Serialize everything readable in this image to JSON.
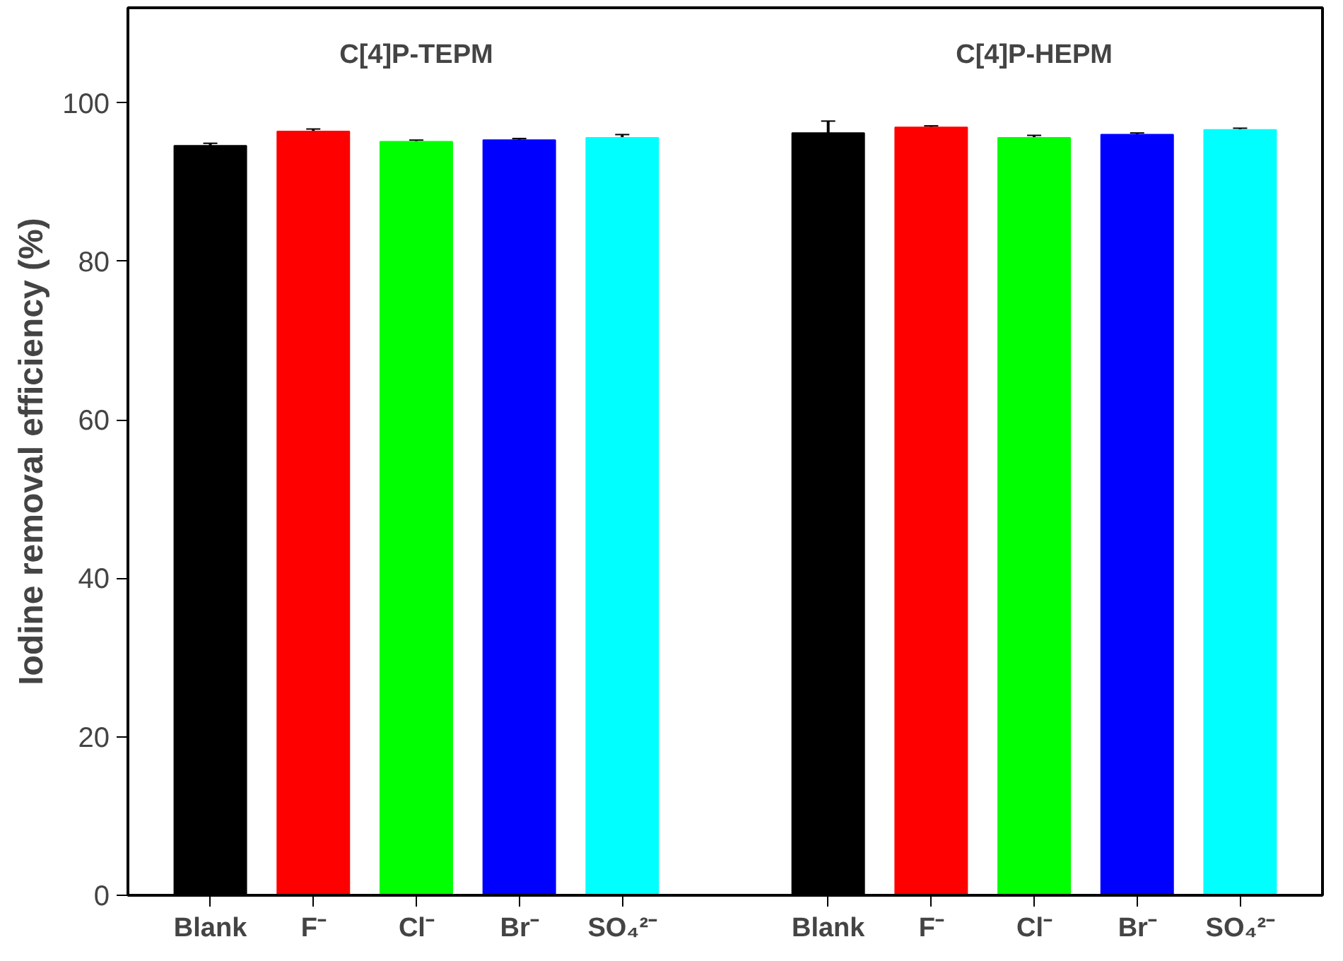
{
  "chart_data": {
    "type": "bar",
    "ylabel": "Iodine removal efficiency (%)",
    "categories": [
      "Blank",
      "F⁻",
      "Cl⁻",
      "Br⁻",
      "SO₄²⁻",
      null,
      "Blank",
      "F⁻",
      "Cl⁻",
      "Br⁻",
      "SO₄²⁻"
    ],
    "values": [
      94.6,
      96.4,
      95.1,
      95.3,
      95.6,
      null,
      96.2,
      96.9,
      95.6,
      96.0,
      96.6
    ],
    "errors": [
      0.3,
      0.3,
      0.2,
      0.2,
      0.4,
      null,
      1.5,
      0.2,
      0.3,
      0.2,
      0.2
    ],
    "colors": [
      "#000000",
      "#ff0000",
      "#00ff00",
      "#0000ff",
      "#00ffff",
      null,
      "#000000",
      "#ff0000",
      "#00ff00",
      "#0000ff",
      "#00ffff"
    ],
    "annotations": [
      "C[4]P-TEPM",
      "C[4]P-HEPM"
    ],
    "ylim": [
      0,
      112
    ],
    "yticks": [
      0,
      20,
      40,
      60,
      80,
      100
    ],
    "grid": false
  }
}
